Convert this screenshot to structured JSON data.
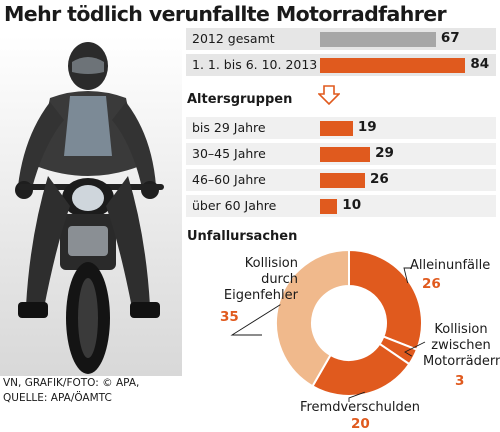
{
  "title": "Mehr tödlich verunfallte Motorradfahrer",
  "colors": {
    "total_bar": "#a7a7a7",
    "accent": "#e05a1e",
    "accent_light": "#f0b98c",
    "row_bg": "#efefef"
  },
  "totals": {
    "rows": [
      {
        "label": "2012 gesamt",
        "value": 67,
        "color": "#a7a7a7"
      },
      {
        "label": "1. 1. bis 6. 10. 2013",
        "value": 84,
        "color": "#e05a1e"
      }
    ]
  },
  "age_groups": {
    "title": "Altersgruppen",
    "arrow_icon": "down-arrow-icon",
    "rows": [
      {
        "label": "bis 29 Jahre",
        "value": 19
      },
      {
        "label": "30–45 Jahre",
        "value": 29
      },
      {
        "label": "46–60 Jahre",
        "value": 26
      },
      {
        "label": "über 60 Jahre",
        "value": 10
      }
    ]
  },
  "causes": {
    "title": "Unfallursachen"
  },
  "chart_data": [
    {
      "type": "bar",
      "orientation": "horizontal",
      "categories": [
        "2012 gesamt",
        "1. 1. bis 6. 10. 2013"
      ],
      "values": [
        67,
        84
      ]
    },
    {
      "type": "bar",
      "orientation": "horizontal",
      "title": "Altersgruppen",
      "categories": [
        "bis 29 Jahre",
        "30–45 Jahre",
        "46–60 Jahre",
        "über 60 Jahre"
      ],
      "values": [
        19,
        29,
        26,
        10
      ]
    },
    {
      "type": "pie",
      "variant": "donut",
      "title": "Unfallursachen",
      "slices": [
        {
          "label": "Alleinunfälle",
          "value": 26,
          "color": "#e05a1e"
        },
        {
          "label": "Kollision zwischen Motorrädern",
          "value": 3,
          "color": "#e05a1e"
        },
        {
          "label": "Fremdverschulden",
          "value": 20,
          "color": "#e05a1e"
        },
        {
          "label": "Kollision durch Eigenfehler",
          "value": 35,
          "color": "#f0b98c"
        }
      ],
      "label_lines": [
        [
          "Alleinunfälle"
        ],
        [
          "Kollision",
          "zwischen",
          "Motorrädern"
        ],
        [
          "Fremdverschulden"
        ],
        [
          "Kollision",
          "durch",
          "Eigenfehler"
        ]
      ]
    }
  ],
  "credit": {
    "line1": "VN, GRAFIK/FOTO: © APA,",
    "line2": "QUELLE: APA/ÖAMTC"
  }
}
